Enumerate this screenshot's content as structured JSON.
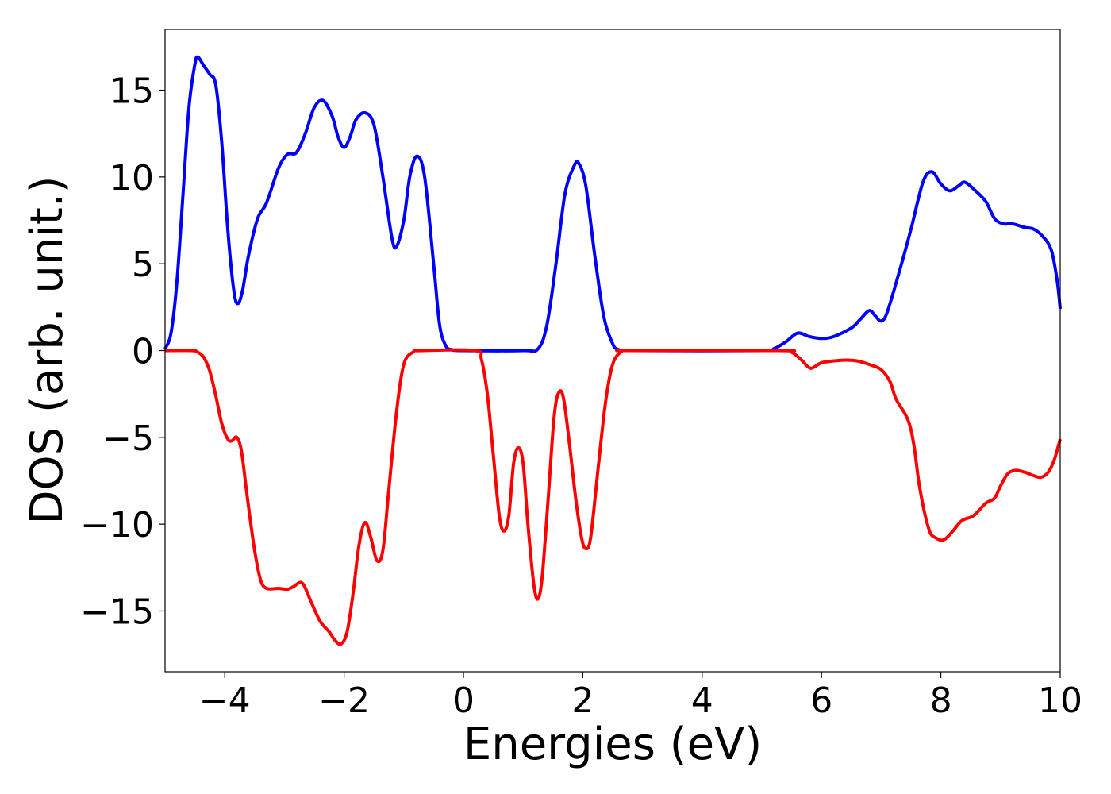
{
  "chart_data": {
    "type": "line",
    "title": "",
    "xlabel": "Energies (eV)",
    "ylabel": "DOS (arb. unit.)",
    "xlim": [
      -5,
      10
    ],
    "ylim": [
      -18.5,
      18.5
    ],
    "xticks": [
      -4,
      -2,
      0,
      2,
      4,
      6,
      8,
      10
    ],
    "yticks": [
      -15,
      -10,
      -5,
      0,
      5,
      10,
      15
    ],
    "grid": false,
    "legend": "none",
    "series": [
      {
        "color": "#0000ff",
        "points": [
          [
            -5.0,
            0.1
          ],
          [
            -4.9,
            1.0
          ],
          [
            -4.8,
            4.0
          ],
          [
            -4.7,
            9.0
          ],
          [
            -4.6,
            14.0
          ],
          [
            -4.5,
            16.5
          ],
          [
            -4.45,
            16.9
          ],
          [
            -4.35,
            16.4
          ],
          [
            -4.25,
            15.9
          ],
          [
            -4.15,
            15.3
          ],
          [
            -4.05,
            12.0
          ],
          [
            -3.95,
            7.0
          ],
          [
            -3.85,
            3.5
          ],
          [
            -3.78,
            2.7
          ],
          [
            -3.7,
            3.5
          ],
          [
            -3.6,
            5.5
          ],
          [
            -3.45,
            7.6
          ],
          [
            -3.3,
            8.5
          ],
          [
            -3.1,
            10.5
          ],
          [
            -2.95,
            11.3
          ],
          [
            -2.8,
            11.4
          ],
          [
            -2.65,
            12.5
          ],
          [
            -2.5,
            14.0
          ],
          [
            -2.35,
            14.4
          ],
          [
            -2.2,
            13.5
          ],
          [
            -2.1,
            12.3
          ],
          [
            -2.0,
            11.7
          ],
          [
            -1.9,
            12.3
          ],
          [
            -1.8,
            13.3
          ],
          [
            -1.65,
            13.7
          ],
          [
            -1.5,
            13.0
          ],
          [
            -1.35,
            10.0
          ],
          [
            -1.2,
            6.5
          ],
          [
            -1.12,
            6.0
          ],
          [
            -1.0,
            7.5
          ],
          [
            -0.9,
            10.0
          ],
          [
            -0.78,
            11.2
          ],
          [
            -0.65,
            10.0
          ],
          [
            -0.5,
            5.0
          ],
          [
            -0.4,
            1.5
          ],
          [
            -0.3,
            0.3
          ],
          [
            -0.2,
            0.05
          ],
          [
            0.0,
            0.0
          ],
          [
            1.0,
            0.0
          ],
          [
            1.25,
            0.1
          ],
          [
            1.4,
            1.5
          ],
          [
            1.55,
            5.0
          ],
          [
            1.7,
            9.0
          ],
          [
            1.85,
            10.6
          ],
          [
            1.93,
            10.8
          ],
          [
            2.05,
            9.5
          ],
          [
            2.2,
            5.5
          ],
          [
            2.35,
            2.0
          ],
          [
            2.5,
            0.4
          ],
          [
            2.6,
            0.05
          ],
          [
            2.8,
            0.0
          ],
          [
            5.0,
            0.0
          ],
          [
            5.2,
            0.1
          ],
          [
            5.4,
            0.5
          ],
          [
            5.6,
            1.0
          ],
          [
            5.8,
            0.8
          ],
          [
            6.0,
            0.7
          ],
          [
            6.2,
            0.8
          ],
          [
            6.5,
            1.3
          ],
          [
            6.65,
            1.8
          ],
          [
            6.8,
            2.3
          ],
          [
            6.9,
            2.0
          ],
          [
            7.0,
            1.7
          ],
          [
            7.1,
            2.2
          ],
          [
            7.3,
            4.5
          ],
          [
            7.5,
            7.0
          ],
          [
            7.7,
            9.7
          ],
          [
            7.85,
            10.3
          ],
          [
            8.0,
            9.6
          ],
          [
            8.15,
            9.2
          ],
          [
            8.3,
            9.5
          ],
          [
            8.4,
            9.7
          ],
          [
            8.55,
            9.3
          ],
          [
            8.75,
            8.6
          ],
          [
            8.9,
            7.6
          ],
          [
            9.05,
            7.3
          ],
          [
            9.2,
            7.3
          ],
          [
            9.4,
            7.1
          ],
          [
            9.55,
            7.0
          ],
          [
            9.7,
            6.6
          ],
          [
            9.85,
            5.8
          ],
          [
            9.95,
            4.0
          ],
          [
            10.0,
            2.4
          ]
        ]
      },
      {
        "color": "#ff0000",
        "points": [
          [
            -5.0,
            0.0
          ],
          [
            -4.55,
            0.0
          ],
          [
            -4.45,
            -0.1
          ],
          [
            -4.35,
            -0.4
          ],
          [
            -4.25,
            -1.2
          ],
          [
            -4.15,
            -2.6
          ],
          [
            -4.05,
            -4.2
          ],
          [
            -3.95,
            -5.1
          ],
          [
            -3.88,
            -5.2
          ],
          [
            -3.8,
            -5.0
          ],
          [
            -3.72,
            -5.8
          ],
          [
            -3.62,
            -8.5
          ],
          [
            -3.5,
            -11.5
          ],
          [
            -3.4,
            -13.2
          ],
          [
            -3.3,
            -13.7
          ],
          [
            -3.1,
            -13.7
          ],
          [
            -2.95,
            -13.75
          ],
          [
            -2.85,
            -13.6
          ],
          [
            -2.7,
            -13.4
          ],
          [
            -2.55,
            -14.5
          ],
          [
            -2.4,
            -15.6
          ],
          [
            -2.25,
            -16.2
          ],
          [
            -2.15,
            -16.7
          ],
          [
            -2.05,
            -16.9
          ],
          [
            -1.95,
            -16.2
          ],
          [
            -1.85,
            -14.0
          ],
          [
            -1.75,
            -11.2
          ],
          [
            -1.65,
            -9.9
          ],
          [
            -1.55,
            -10.8
          ],
          [
            -1.45,
            -12.1
          ],
          [
            -1.35,
            -11.5
          ],
          [
            -1.25,
            -8.0
          ],
          [
            -1.12,
            -3.5
          ],
          [
            -1.0,
            -0.8
          ],
          [
            -0.85,
            -0.1
          ],
          [
            -0.7,
            0.0
          ],
          [
            0.2,
            0.0
          ],
          [
            0.3,
            -0.5
          ],
          [
            0.4,
            -2.5
          ],
          [
            0.5,
            -6.0
          ],
          [
            0.6,
            -9.5
          ],
          [
            0.68,
            -10.4
          ],
          [
            0.76,
            -9.5
          ],
          [
            0.84,
            -6.5
          ],
          [
            0.92,
            -5.6
          ],
          [
            1.0,
            -6.5
          ],
          [
            1.08,
            -10.0
          ],
          [
            1.18,
            -13.5
          ],
          [
            1.25,
            -14.3
          ],
          [
            1.32,
            -13.0
          ],
          [
            1.42,
            -8.5
          ],
          [
            1.52,
            -3.8
          ],
          [
            1.6,
            -2.4
          ],
          [
            1.68,
            -2.8
          ],
          [
            1.78,
            -5.5
          ],
          [
            1.88,
            -8.5
          ],
          [
            1.98,
            -10.8
          ],
          [
            2.05,
            -11.4
          ],
          [
            2.13,
            -10.8
          ],
          [
            2.25,
            -7.0
          ],
          [
            2.38,
            -3.0
          ],
          [
            2.5,
            -0.8
          ],
          [
            2.65,
            -0.05
          ],
          [
            2.8,
            0.0
          ],
          [
            5.3,
            0.0
          ],
          [
            5.5,
            -0.1
          ],
          [
            5.65,
            -0.5
          ],
          [
            5.8,
            -1.0
          ],
          [
            5.9,
            -0.9
          ],
          [
            6.0,
            -0.7
          ],
          [
            6.2,
            -0.6
          ],
          [
            6.4,
            -0.55
          ],
          [
            6.6,
            -0.6
          ],
          [
            6.8,
            -0.8
          ],
          [
            7.0,
            -1.1
          ],
          [
            7.15,
            -1.8
          ],
          [
            7.25,
            -2.8
          ],
          [
            7.45,
            -4.0
          ],
          [
            7.55,
            -5.5
          ],
          [
            7.65,
            -8.0
          ],
          [
            7.8,
            -10.3
          ],
          [
            7.92,
            -10.8
          ],
          [
            8.05,
            -10.9
          ],
          [
            8.2,
            -10.4
          ],
          [
            8.35,
            -9.8
          ],
          [
            8.55,
            -9.5
          ],
          [
            8.75,
            -8.8
          ],
          [
            8.9,
            -8.5
          ],
          [
            9.0,
            -7.8
          ],
          [
            9.12,
            -7.1
          ],
          [
            9.25,
            -6.9
          ],
          [
            9.4,
            -7.0
          ],
          [
            9.55,
            -7.2
          ],
          [
            9.68,
            -7.3
          ],
          [
            9.8,
            -7.0
          ],
          [
            9.9,
            -6.3
          ],
          [
            10.0,
            -5.1
          ]
        ]
      }
    ]
  }
}
